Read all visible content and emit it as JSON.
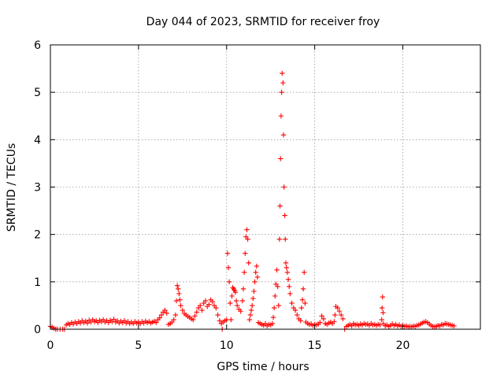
{
  "chart_data": {
    "type": "scatter",
    "title": "Day 044 of 2023, SRMTID for receiver froy",
    "xlabel": "GPS time / hours",
    "ylabel": "SRMTID / TECUs",
    "xlim": [
      0,
      24.4
    ],
    "ylim": [
      0,
      6
    ],
    "xticks": [
      0,
      5,
      10,
      15,
      20
    ],
    "yticks": [
      0,
      1,
      2,
      3,
      4,
      5,
      6
    ],
    "grid": true,
    "marker": "plus",
    "color": "#ff0000",
    "series": [
      {
        "name": "SRMTID",
        "points": [
          [
            0.0,
            0.06
          ],
          [
            0.1,
            0.04
          ],
          [
            0.2,
            0.02
          ],
          [
            0.3,
            0.0
          ],
          [
            0.4,
            0.0
          ],
          [
            0.55,
            0.0
          ],
          [
            0.7,
            0.0
          ],
          [
            0.8,
            0.0
          ],
          [
            0.9,
            0.09
          ],
          [
            1.0,
            0.12
          ],
          [
            1.1,
            0.1
          ],
          [
            1.2,
            0.14
          ],
          [
            1.3,
            0.11
          ],
          [
            1.4,
            0.15
          ],
          [
            1.5,
            0.12
          ],
          [
            1.6,
            0.16
          ],
          [
            1.7,
            0.13
          ],
          [
            1.8,
            0.18
          ],
          [
            1.9,
            0.14
          ],
          [
            2.0,
            0.17
          ],
          [
            2.1,
            0.13
          ],
          [
            2.2,
            0.19
          ],
          [
            2.3,
            0.15
          ],
          [
            2.4,
            0.2
          ],
          [
            2.5,
            0.16
          ],
          [
            2.6,
            0.18
          ],
          [
            2.7,
            0.14
          ],
          [
            2.8,
            0.19
          ],
          [
            2.9,
            0.16
          ],
          [
            3.0,
            0.2
          ],
          [
            3.1,
            0.15
          ],
          [
            3.2,
            0.18
          ],
          [
            3.3,
            0.14
          ],
          [
            3.4,
            0.19
          ],
          [
            3.5,
            0.16
          ],
          [
            3.6,
            0.21
          ],
          [
            3.7,
            0.15
          ],
          [
            3.8,
            0.18
          ],
          [
            3.9,
            0.13
          ],
          [
            4.0,
            0.17
          ],
          [
            4.1,
            0.14
          ],
          [
            4.2,
            0.18
          ],
          [
            4.3,
            0.13
          ],
          [
            4.4,
            0.16
          ],
          [
            4.5,
            0.12
          ],
          [
            4.6,
            0.15
          ],
          [
            4.7,
            0.12
          ],
          [
            4.8,
            0.16
          ],
          [
            4.9,
            0.13
          ],
          [
            5.0,
            0.15
          ],
          [
            5.1,
            0.12
          ],
          [
            5.2,
            0.16
          ],
          [
            5.3,
            0.13
          ],
          [
            5.4,
            0.17
          ],
          [
            5.5,
            0.14
          ],
          [
            5.6,
            0.16
          ],
          [
            5.7,
            0.13
          ],
          [
            5.8,
            0.15
          ],
          [
            5.9,
            0.17
          ],
          [
            6.0,
            0.14
          ],
          [
            6.1,
            0.2
          ],
          [
            6.2,
            0.24
          ],
          [
            6.3,
            0.3
          ],
          [
            6.4,
            0.36
          ],
          [
            6.5,
            0.4
          ],
          [
            6.6,
            0.34
          ],
          [
            6.7,
            0.1
          ],
          [
            6.8,
            0.12
          ],
          [
            6.9,
            0.15
          ],
          [
            7.0,
            0.2
          ],
          [
            7.1,
            0.3
          ],
          [
            7.15,
            0.6
          ],
          [
            7.2,
            0.92
          ],
          [
            7.25,
            0.85
          ],
          [
            7.3,
            0.75
          ],
          [
            7.35,
            0.62
          ],
          [
            7.4,
            0.5
          ],
          [
            7.5,
            0.4
          ],
          [
            7.6,
            0.33
          ],
          [
            7.7,
            0.3
          ],
          [
            7.8,
            0.27
          ],
          [
            7.9,
            0.25
          ],
          [
            8.0,
            0.22
          ],
          [
            8.1,
            0.2
          ],
          [
            8.2,
            0.28
          ],
          [
            8.3,
            0.36
          ],
          [
            8.4,
            0.45
          ],
          [
            8.5,
            0.5
          ],
          [
            8.6,
            0.4
          ],
          [
            8.7,
            0.55
          ],
          [
            8.8,
            0.6
          ],
          [
            8.9,
            0.48
          ],
          [
            9.0,
            0.52
          ],
          [
            9.1,
            0.62
          ],
          [
            9.2,
            0.58
          ],
          [
            9.3,
            0.5
          ],
          [
            9.4,
            0.45
          ],
          [
            9.5,
            0.3
          ],
          [
            9.6,
            0.18
          ],
          [
            9.7,
            0.12
          ],
          [
            9.75,
            0.0
          ],
          [
            9.8,
            0.15
          ],
          [
            9.9,
            0.18
          ],
          [
            10.0,
            0.2
          ],
          [
            10.05,
            1.6
          ],
          [
            10.1,
            1.3
          ],
          [
            10.15,
            1.0
          ],
          [
            10.2,
            0.55
          ],
          [
            10.25,
            0.2
          ],
          [
            10.3,
            0.7
          ],
          [
            10.35,
            0.88
          ],
          [
            10.4,
            0.85
          ],
          [
            10.45,
            0.82
          ],
          [
            10.5,
            0.78
          ],
          [
            10.55,
            0.6
          ],
          [
            10.6,
            0.5
          ],
          [
            10.7,
            0.42
          ],
          [
            10.8,
            0.38
          ],
          [
            10.9,
            0.6
          ],
          [
            10.95,
            0.85
          ],
          [
            11.0,
            1.2
          ],
          [
            11.05,
            1.6
          ],
          [
            11.1,
            1.95
          ],
          [
            11.15,
            2.1
          ],
          [
            11.2,
            1.9
          ],
          [
            11.25,
            1.4
          ],
          [
            11.3,
            0.2
          ],
          [
            11.35,
            0.3
          ],
          [
            11.4,
            0.4
          ],
          [
            11.45,
            0.5
          ],
          [
            11.5,
            0.65
          ],
          [
            11.55,
            0.8
          ],
          [
            11.6,
            1.0
          ],
          [
            11.65,
            1.2
          ],
          [
            11.7,
            1.33
          ],
          [
            11.75,
            1.1
          ],
          [
            11.8,
            0.14
          ],
          [
            11.9,
            0.12
          ],
          [
            12.0,
            0.1
          ],
          [
            12.1,
            0.08
          ],
          [
            12.2,
            0.12
          ],
          [
            12.3,
            0.07
          ],
          [
            12.4,
            0.1
          ],
          [
            12.5,
            0.09
          ],
          [
            12.6,
            0.12
          ],
          [
            12.65,
            0.25
          ],
          [
            12.7,
            0.45
          ],
          [
            12.75,
            0.7
          ],
          [
            12.8,
            0.95
          ],
          [
            12.85,
            1.25
          ],
          [
            12.9,
            0.9
          ],
          [
            12.95,
            0.5
          ],
          [
            13.0,
            1.9
          ],
          [
            13.03,
            2.6
          ],
          [
            13.06,
            3.6
          ],
          [
            13.09,
            4.5
          ],
          [
            13.12,
            5.0
          ],
          [
            13.15,
            5.4
          ],
          [
            13.2,
            5.2
          ],
          [
            13.23,
            4.1
          ],
          [
            13.26,
            3.0
          ],
          [
            13.3,
            2.4
          ],
          [
            13.33,
            1.9
          ],
          [
            13.36,
            1.4
          ],
          [
            13.4,
            1.3
          ],
          [
            13.45,
            1.2
          ],
          [
            13.5,
            1.05
          ],
          [
            13.55,
            0.9
          ],
          [
            13.6,
            0.75
          ],
          [
            13.7,
            0.55
          ],
          [
            13.8,
            0.45
          ],
          [
            13.9,
            0.4
          ],
          [
            14.0,
            0.3
          ],
          [
            14.1,
            0.22
          ],
          [
            14.2,
            0.18
          ],
          [
            14.25,
            0.45
          ],
          [
            14.3,
            0.62
          ],
          [
            14.35,
            0.85
          ],
          [
            14.4,
            1.2
          ],
          [
            14.45,
            0.55
          ],
          [
            14.5,
            0.15
          ],
          [
            14.6,
            0.12
          ],
          [
            14.7,
            0.1
          ],
          [
            14.8,
            0.11
          ],
          [
            14.9,
            0.08
          ],
          [
            15.0,
            0.1
          ],
          [
            15.1,
            0.09
          ],
          [
            15.2,
            0.11
          ],
          [
            15.3,
            0.14
          ],
          [
            15.4,
            0.28
          ],
          [
            15.5,
            0.22
          ],
          [
            15.6,
            0.12
          ],
          [
            15.7,
            0.1
          ],
          [
            15.8,
            0.13
          ],
          [
            15.9,
            0.15
          ],
          [
            16.0,
            0.12
          ],
          [
            16.1,
            0.16
          ],
          [
            16.15,
            0.3
          ],
          [
            16.2,
            0.48
          ],
          [
            16.3,
            0.45
          ],
          [
            16.4,
            0.38
          ],
          [
            16.5,
            0.3
          ],
          [
            16.6,
            0.22
          ],
          [
            16.7,
            0.0
          ],
          [
            16.8,
            0.06
          ],
          [
            16.9,
            0.08
          ],
          [
            17.0,
            0.1
          ],
          [
            17.1,
            0.07
          ],
          [
            17.2,
            0.12
          ],
          [
            17.3,
            0.09
          ],
          [
            17.4,
            0.1
          ],
          [
            17.5,
            0.08
          ],
          [
            17.6,
            0.11
          ],
          [
            17.7,
            0.09
          ],
          [
            17.8,
            0.12
          ],
          [
            17.9,
            0.1
          ],
          [
            18.0,
            0.11
          ],
          [
            18.1,
            0.08
          ],
          [
            18.2,
            0.12
          ],
          [
            18.3,
            0.09
          ],
          [
            18.4,
            0.1
          ],
          [
            18.5,
            0.08
          ],
          [
            18.6,
            0.1
          ],
          [
            18.7,
            0.09
          ],
          [
            18.8,
            0.2
          ],
          [
            18.82,
            0.45
          ],
          [
            18.85,
            0.68
          ],
          [
            18.88,
            0.35
          ],
          [
            18.9,
            0.12
          ],
          [
            19.0,
            0.07
          ],
          [
            19.1,
            0.09
          ],
          [
            19.2,
            0.06
          ],
          [
            19.3,
            0.08
          ],
          [
            19.4,
            0.11
          ],
          [
            19.5,
            0.08
          ],
          [
            19.6,
            0.1
          ],
          [
            19.7,
            0.07
          ],
          [
            19.8,
            0.09
          ],
          [
            19.9,
            0.06
          ],
          [
            20.0,
            0.08
          ],
          [
            20.1,
            0.06
          ],
          [
            20.2,
            0.07
          ],
          [
            20.3,
            0.05
          ],
          [
            20.4,
            0.06
          ],
          [
            20.5,
            0.05
          ],
          [
            20.6,
            0.07
          ],
          [
            20.7,
            0.06
          ],
          [
            20.8,
            0.08
          ],
          [
            20.9,
            0.09
          ],
          [
            21.0,
            0.11
          ],
          [
            21.1,
            0.13
          ],
          [
            21.2,
            0.15
          ],
          [
            21.3,
            0.16
          ],
          [
            21.4,
            0.14
          ],
          [
            21.5,
            0.11
          ],
          [
            21.6,
            0.08
          ],
          [
            21.7,
            0.06
          ],
          [
            21.8,
            0.05
          ],
          [
            21.9,
            0.06
          ],
          [
            22.0,
            0.08
          ],
          [
            22.1,
            0.07
          ],
          [
            22.2,
            0.1
          ],
          [
            22.3,
            0.09
          ],
          [
            22.4,
            0.12
          ],
          [
            22.5,
            0.11
          ],
          [
            22.6,
            0.1
          ],
          [
            22.7,
            0.09
          ],
          [
            22.8,
            0.08
          ],
          [
            22.9,
            0.07
          ]
        ]
      }
    ]
  }
}
